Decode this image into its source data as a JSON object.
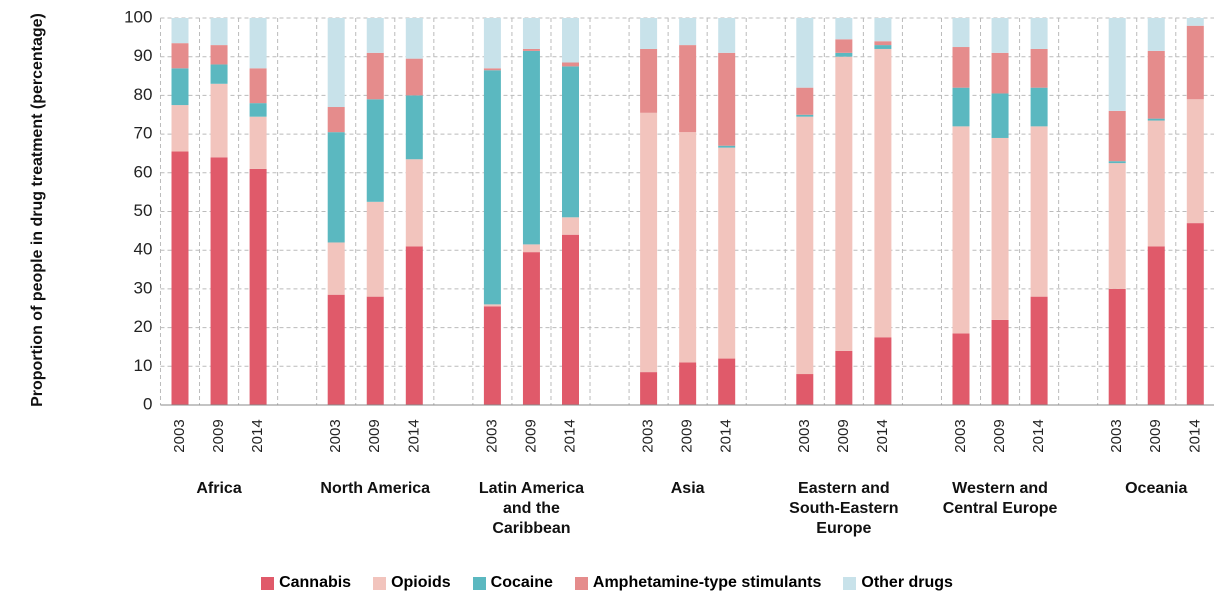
{
  "chart_data": {
    "type": "stacked_bar",
    "ylabel": "Proportion of people in drug treatment (percentage)",
    "groups": [
      {
        "name": "Africa",
        "categories": [
          "2003",
          "2009",
          "2014"
        ]
      },
      {
        "name": "North America",
        "categories": [
          "2003",
          "2009",
          "2014"
        ]
      },
      {
        "name": "Latin America and the Caribbean",
        "categories": [
          "2003",
          "2009",
          "2014"
        ]
      },
      {
        "name": "Asia",
        "categories": [
          "2003",
          "2009",
          "2014"
        ]
      },
      {
        "name": "Eastern and South-Eastern Europe",
        "categories": [
          "2003",
          "2009",
          "2014"
        ]
      },
      {
        "name": "Western and Central Europe",
        "categories": [
          "2003",
          "2009",
          "2014"
        ]
      },
      {
        "name": "Oceania",
        "categories": [
          "2003",
          "2009",
          "2014"
        ]
      }
    ],
    "series": [
      {
        "name": "Cannabis",
        "color": "#e05a6a",
        "values": [
          65.5,
          64,
          61,
          28.5,
          28,
          41,
          25.5,
          39.5,
          44,
          8.5,
          11,
          12,
          8,
          14,
          17.5,
          18.5,
          22,
          28,
          30,
          41,
          47
        ]
      },
      {
        "name": "Opioids",
        "color": "#f2c4bd",
        "values": [
          12,
          19,
          13.5,
          13.5,
          24.5,
          22.5,
          0.5,
          2,
          4.5,
          67,
          59.5,
          54.5,
          66.5,
          76,
          74.5,
          53.5,
          47,
          44,
          32.5,
          32.5,
          32
        ]
      },
      {
        "name": "Cocaine",
        "color": "#5bb8c0",
        "values": [
          9.5,
          5,
          3.5,
          28.5,
          26.5,
          16.5,
          60.5,
          50,
          39,
          0,
          0,
          0.5,
          0.5,
          1,
          1,
          10,
          11.5,
          10,
          0.5,
          0.5,
          0
        ]
      },
      {
        "name": "Amphetamine-type stimulants",
        "color": "#e58c8c",
        "values": [
          6.5,
          5,
          9,
          6.5,
          12,
          9.5,
          0.5,
          0.5,
          1,
          16.5,
          22.5,
          24,
          7,
          3.5,
          1,
          10.5,
          10.5,
          10,
          13,
          17.5,
          19
        ]
      },
      {
        "name": "Other drugs",
        "color": "#c8e2ea",
        "values": [
          6.5,
          7,
          13,
          23,
          9,
          10.5,
          13,
          8,
          11.5,
          8,
          7,
          9,
          18,
          5.5,
          6,
          7.5,
          9,
          8,
          24,
          8.5,
          2
        ]
      }
    ],
    "ylim": [
      0,
      100
    ],
    "yticks": [
      0,
      10,
      20,
      30,
      40,
      50,
      60,
      70,
      80,
      90,
      100
    ],
    "grid": true,
    "legend": "bottom"
  }
}
